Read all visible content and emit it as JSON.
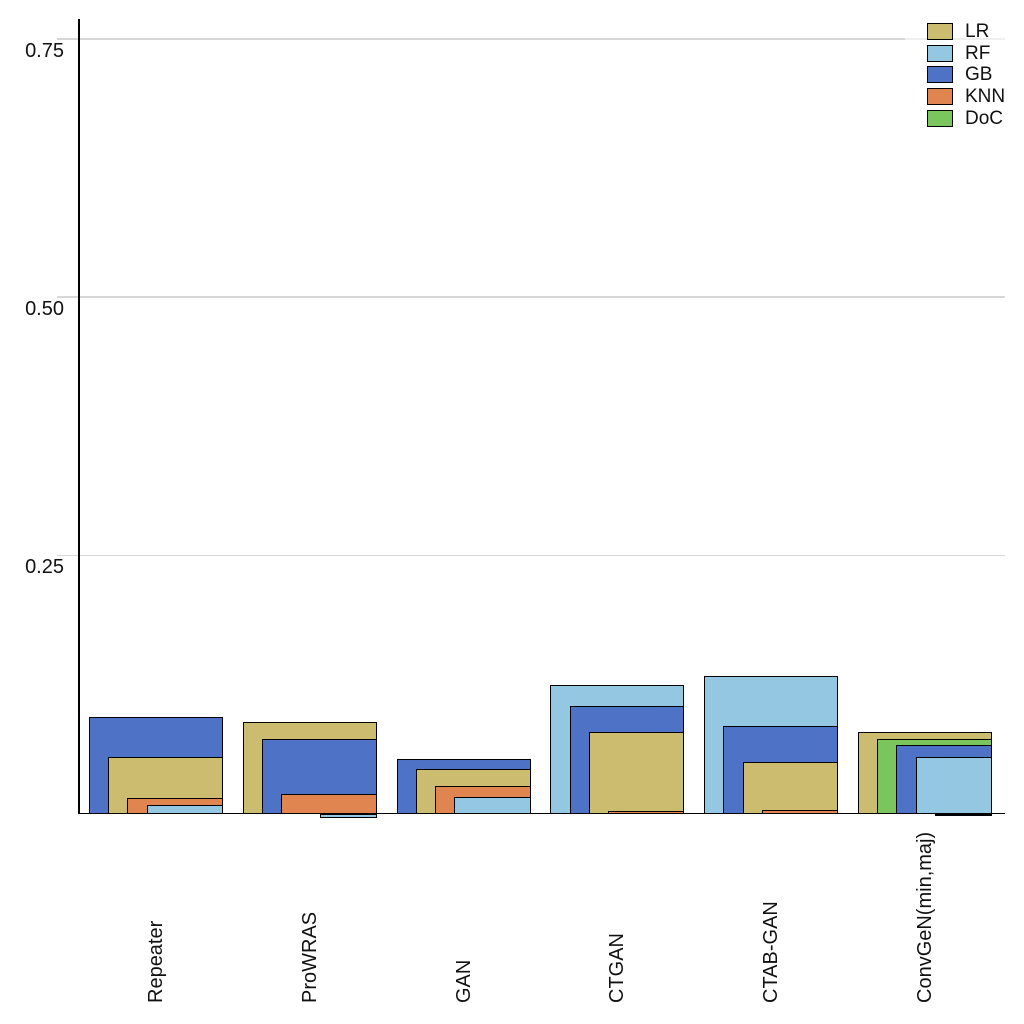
{
  "chart_data": {
    "type": "bar",
    "style": "nested-overlapping-bars: within each category, bars are sorted by value descending; the largest value gets the widest bar drawn behind, each smaller value a narrower bar drawn in front, all right-aligned on the category slot; near-zero values are invisible, negative values hang below the baseline",
    "title": "",
    "xlabel": "",
    "ylabel": "",
    "categories": [
      "Repeater",
      "ProWRAS",
      "GAN",
      "CTGAN",
      "CTAB-GAN",
      "ConvGeN(min,maj)"
    ],
    "series": [
      {
        "name": "LR",
        "color": "#CCBC70",
        "values": [
          0.055,
          0.089,
          0.043,
          0.079,
          0.05,
          0.079
        ]
      },
      {
        "name": "RF",
        "color": "#94C7E2",
        "values": [
          0.008,
          -0.004,
          0.016,
          0.124,
          0.133,
          0.055
        ]
      },
      {
        "name": "GB",
        "color": "#4D72C6",
        "values": [
          0.093,
          0.072,
          0.053,
          0.104,
          0.085,
          0.066
        ]
      },
      {
        "name": "KNN",
        "color": "#E0854F",
        "values": [
          0.015,
          0.019,
          0.027,
          0.002,
          0.003,
          -0.002
        ]
      },
      {
        "name": "DoC",
        "color": "#7BC55F",
        "values": [
          0.0,
          0.0,
          0.0,
          0.0,
          0.0,
          0.072
        ]
      }
    ],
    "yticks": [
      0.25,
      0.5,
      0.75
    ],
    "ytick_labels": [
      "0.25",
      "0.50",
      "0.75"
    ],
    "ylim": [
      -0.01,
      0.77
    ],
    "grid": "horizontal",
    "legend_position": "top-right",
    "legend_items": [
      "LR",
      "RF",
      "GB",
      "KNN",
      "DoC"
    ]
  },
  "colors": {
    "background": "#ffffff",
    "axis": "#000000",
    "gridline": "#d7d7d7",
    "tick_text": "#111111"
  }
}
